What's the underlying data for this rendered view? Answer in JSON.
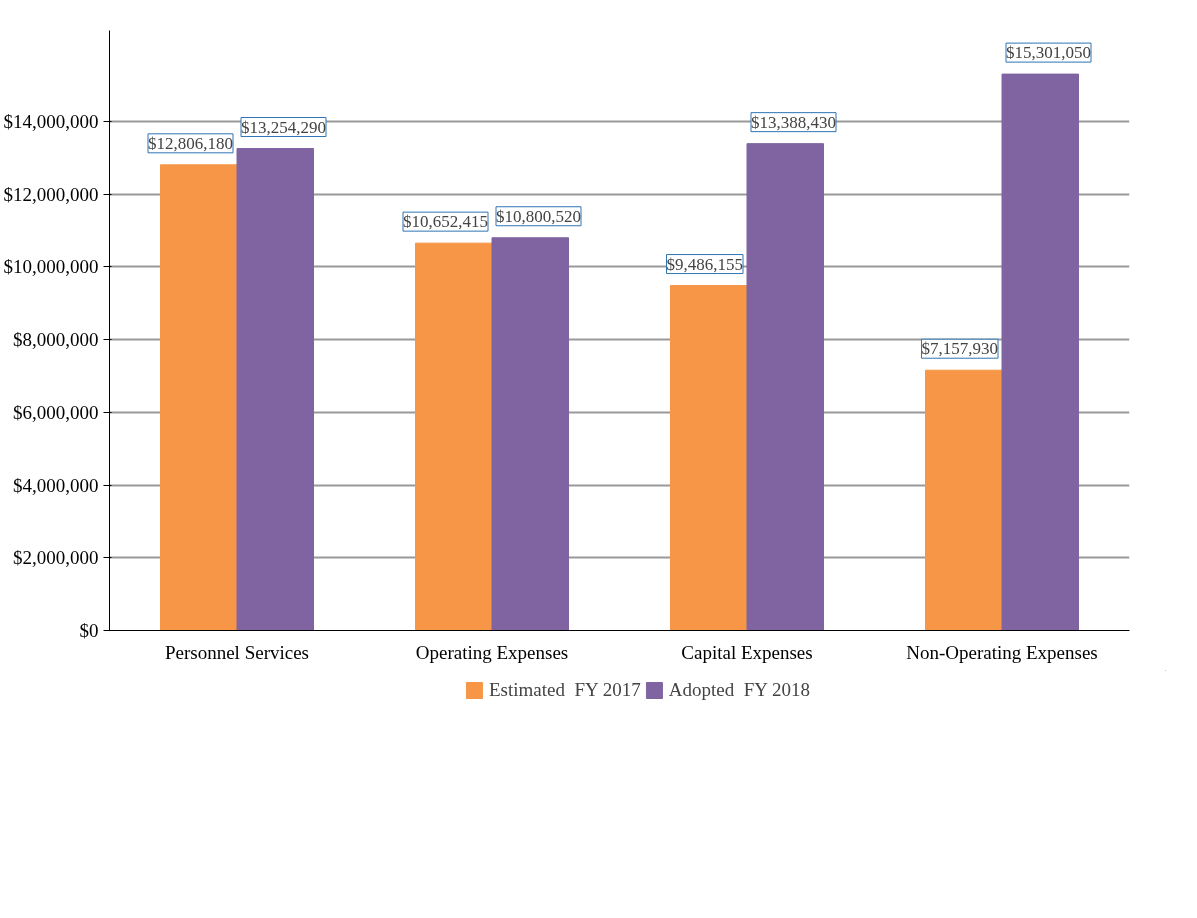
{
  "chart_data": {
    "type": "bar",
    "categories": [
      "Personnel Services",
      "Operating Expenses",
      "Capital Expenses",
      "Non-Operating Expenses"
    ],
    "series": [
      {
        "name": "Estimated  FY 2017",
        "color": "#f79646",
        "values": [
          12806180,
          10652415,
          9486155,
          7157930
        ],
        "value_labels": [
          "$12,806,180",
          "$10,652,415",
          "$9,486,155",
          "$7,157,930"
        ]
      },
      {
        "name": "Adopted  FY 2018",
        "color": "#8064a2",
        "values": [
          13254290,
          10800520,
          13388430,
          15301050
        ],
        "value_labels": [
          "$13,254,290",
          "$10,800,520",
          "$13,388,430",
          "$15,301,050"
        ]
      }
    ],
    "ylim": [
      0,
      16500000
    ],
    "yticks": [
      {
        "value": 0,
        "label": "$0"
      },
      {
        "value": 2000000,
        "label": "$2,000,000"
      },
      {
        "value": 4000000,
        "label": "$4,000,000"
      },
      {
        "value": 6000000,
        "label": "$6,000,000"
      },
      {
        "value": 8000000,
        "label": "$8,000,000"
      },
      {
        "value": 10000000,
        "label": "$10,000,000"
      },
      {
        "value": 12000000,
        "label": "$12,000,000"
      },
      {
        "value": 14000000,
        "label": "$14,000,000"
      }
    ],
    "grid": "y",
    "legend": "bottom"
  }
}
